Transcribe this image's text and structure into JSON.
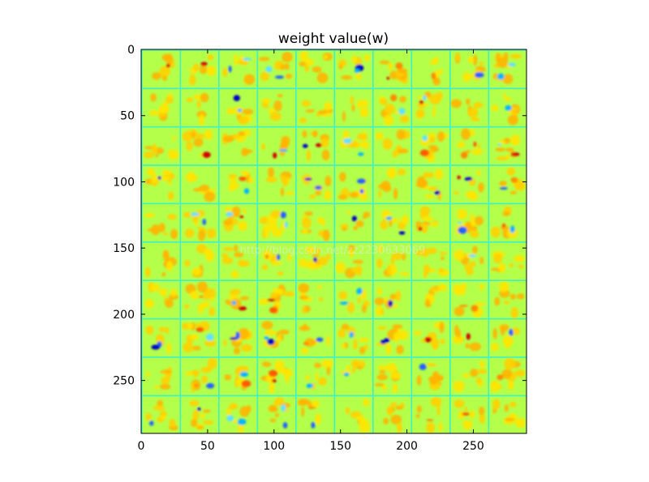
{
  "chart_data": {
    "type": "heatmap",
    "title": "weight value(w)",
    "xlabel": "",
    "ylabel": "",
    "x_range": [
      0,
      290
    ],
    "y_range": [
      290,
      0
    ],
    "y_inverted": true,
    "x_ticks": [
      0,
      50,
      100,
      150,
      200,
      250
    ],
    "y_ticks": [
      0,
      50,
      100,
      150,
      200,
      250
    ],
    "x_tick_labels": [
      "0",
      "50",
      "100",
      "150",
      "200",
      "250"
    ],
    "y_tick_labels": [
      "0",
      "50",
      "100",
      "150",
      "200",
      "250"
    ],
    "grid_rows": 10,
    "grid_cols": 10,
    "tile_size": 28,
    "tile_separator": 1,
    "colormap": "jet",
    "background_color": "#b4ff4a",
    "separator_color": "#3ff0c8",
    "grid": false,
    "watermark": "http://blog.csdn.net/zz2230633069"
  }
}
